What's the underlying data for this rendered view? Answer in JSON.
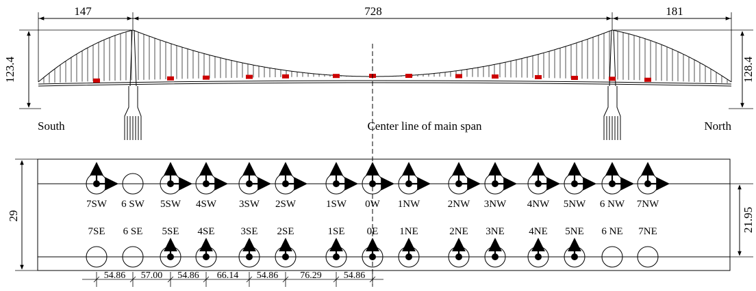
{
  "elevation": {
    "spans": [
      "147",
      "728",
      "181"
    ],
    "left_height": "123.4",
    "right_height": "128.4",
    "south_label": "South",
    "north_label": "North",
    "center_label": "Center line of main span"
  },
  "plan": {
    "width_label": "29",
    "spacing_label": "21.95",
    "west_labels": [
      "7SW",
      "6 SW",
      "5SW",
      "4SW",
      "3SW",
      "2SW",
      "1SW",
      "0W",
      "1NW",
      "2NW",
      "3NW",
      "4NW",
      "5NW",
      "6 NW",
      "7NW"
    ],
    "east_labels": [
      "7SE",
      "6 SE",
      "5SE",
      "4SE",
      "3SE",
      "2SE",
      "1SE",
      "0E",
      "1NE",
      "2NE",
      "3NE",
      "4NE",
      "5NE",
      "6 NE",
      "7NE"
    ],
    "bottom_dims": [
      "54.86",
      "57.00",
      "54.86",
      "66.14",
      "54.86",
      "76.29",
      "54.86"
    ]
  },
  "colors": {
    "line": "#000000",
    "sensor_marker": "#cc0000"
  }
}
